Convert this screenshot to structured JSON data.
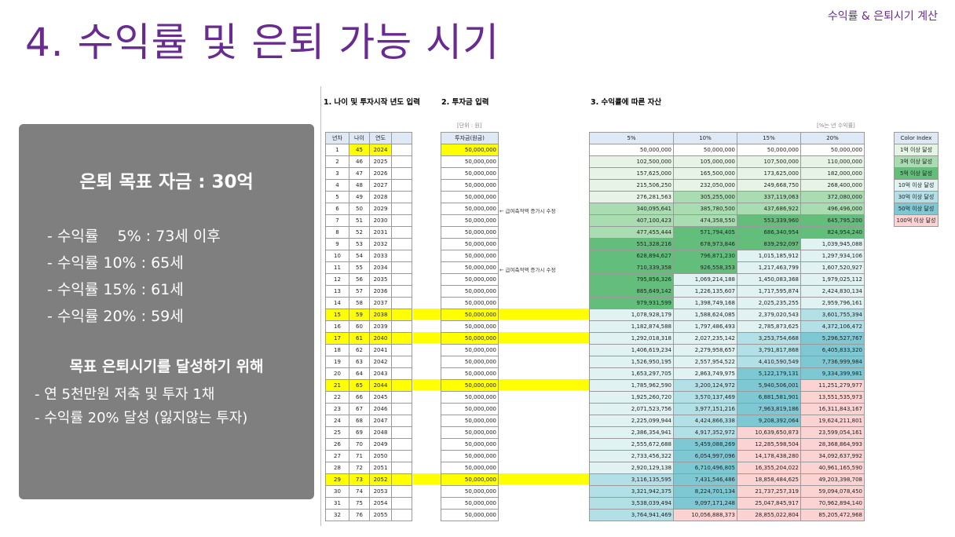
{
  "header": {
    "title": "4. 수익률 및 은퇴 가능 시기",
    "tag": "수익률 & 은퇴시기 계산"
  },
  "summary": {
    "goal": "은퇴 목표 자금 : 30억",
    "rates": [
      "- 수익률    5% : 73세 이후",
      "- 수익률 10% : 65세",
      "- 수익률 15% : 61세",
      "- 수익률 20% : 59세"
    ],
    "achieve_title": "목표 은퇴시기를 달성하기 위해",
    "achieve": [
      "- 연 5천만원 저축 및 투자 1채",
      "- 수익률 20% 달성 (잃지않는 투자)"
    ]
  },
  "sheet": {
    "section1": "1. 나이 및 투자시작 년도 입력",
    "section2": "2. 투자금 입력",
    "section3": "3. 수익률에 따른 자산",
    "unit_note": "[단위 : 원]",
    "rate_note": "[%는 년 수익률]",
    "year_headers": [
      "년차",
      "나이",
      "연도"
    ],
    "invest_header": "투자금(원금)",
    "asset_headers": [
      "5%",
      "10%",
      "15%",
      "20%"
    ],
    "salary_note": "← 급여축적액 증가시 수정",
    "color_index": {
      "title": "Color Index",
      "items": [
        {
          "label": "1억 이상 달성",
          "color": "#e6f4e6"
        },
        {
          "label": "3억 이상 달성",
          "color": "#a9dcb0"
        },
        {
          "label": "5억 이상 달성",
          "color": "#63be7b"
        },
        {
          "label": "10억 이상 달성",
          "color": "#e0f2f1"
        },
        {
          "label": "30억 이상 달성",
          "color": "#b3e0e6"
        },
        {
          "label": "50억 이상 달성",
          "color": "#7ec8d4"
        },
        {
          "label": "100억 이상 달성",
          "color": "#fbd3d3"
        }
      ]
    },
    "rows": [
      {
        "n": "1",
        "age": "45",
        "year": "2024",
        "invest": "50,000,000",
        "a": [
          "50,000,000",
          "50,000,000",
          "50,000,000",
          "50,000,000"
        ]
      },
      {
        "n": "2",
        "age": "46",
        "year": "2025",
        "invest": "50,000,000",
        "a": [
          "102,500,000",
          "105,000,000",
          "107,500,000",
          "110,000,000"
        ]
      },
      {
        "n": "3",
        "age": "47",
        "year": "2026",
        "invest": "50,000,000",
        "a": [
          "157,625,000",
          "165,500,000",
          "173,625,000",
          "182,000,000"
        ]
      },
      {
        "n": "4",
        "age": "48",
        "year": "2027",
        "invest": "50,000,000",
        "a": [
          "215,506,250",
          "232,050,000",
          "249,668,750",
          "268,400,000"
        ]
      },
      {
        "n": "5",
        "age": "49",
        "year": "2028",
        "invest": "50,000,000",
        "a": [
          "276,281,563",
          "305,255,000",
          "337,119,063",
          "372,080,000"
        ]
      },
      {
        "n": "6",
        "age": "50",
        "year": "2029",
        "invest": "50,000,000",
        "a": [
          "340,095,641",
          "385,780,500",
          "437,686,922",
          "496,496,000"
        ]
      },
      {
        "n": "7",
        "age": "51",
        "year": "2030",
        "invest": "50,000,000",
        "a": [
          "407,100,423",
          "474,358,550",
          "553,339,960",
          "645,795,200"
        ]
      },
      {
        "n": "8",
        "age": "52",
        "year": "2031",
        "invest": "50,000,000",
        "a": [
          "477,455,444",
          "571,794,405",
          "686,340,954",
          "824,954,240"
        ]
      },
      {
        "n": "9",
        "age": "53",
        "year": "2032",
        "invest": "50,000,000",
        "a": [
          "551,328,216",
          "678,973,846",
          "839,292,097",
          "1,039,945,088"
        ]
      },
      {
        "n": "10",
        "age": "54",
        "year": "2033",
        "invest": "50,000,000",
        "a": [
          "628,894,627",
          "796,871,230",
          "1,015,185,912",
          "1,297,934,106"
        ]
      },
      {
        "n": "11",
        "age": "55",
        "year": "2034",
        "invest": "50,000,000",
        "a": [
          "710,339,358",
          "926,558,353",
          "1,217,463,799",
          "1,607,520,927"
        ]
      },
      {
        "n": "12",
        "age": "56",
        "year": "2035",
        "invest": "50,000,000",
        "a": [
          "795,856,326",
          "1,069,214,188",
          "1,450,083,368",
          "1,979,025,112"
        ]
      },
      {
        "n": "13",
        "age": "57",
        "year": "2036",
        "invest": "50,000,000",
        "a": [
          "885,649,142",
          "1,226,135,607",
          "1,717,595,874",
          "2,424,830,134"
        ]
      },
      {
        "n": "14",
        "age": "58",
        "year": "2037",
        "invest": "50,000,000",
        "a": [
          "979,931,599",
          "1,398,749,168",
          "2,025,235,255",
          "2,959,796,161"
        ]
      },
      {
        "n": "15",
        "age": "59",
        "year": "2038",
        "invest": "50,000,000",
        "a": [
          "1,078,928,179",
          "1,588,624,085",
          "2,379,020,543",
          "3,601,755,394"
        ]
      },
      {
        "n": "16",
        "age": "60",
        "year": "2039",
        "invest": "50,000,000",
        "a": [
          "1,182,874,588",
          "1,797,486,493",
          "2,785,873,625",
          "4,372,106,472"
        ]
      },
      {
        "n": "17",
        "age": "61",
        "year": "2040",
        "invest": "50,000,000",
        "a": [
          "1,292,018,318",
          "2,027,235,142",
          "3,253,754,668",
          "5,296,527,767"
        ]
      },
      {
        "n": "18",
        "age": "62",
        "year": "2041",
        "invest": "50,000,000",
        "a": [
          "1,406,619,234",
          "2,279,958,657",
          "3,791,817,868",
          "6,405,833,320"
        ]
      },
      {
        "n": "19",
        "age": "63",
        "year": "2042",
        "invest": "50,000,000",
        "a": [
          "1,526,950,195",
          "2,557,954,522",
          "4,410,590,549",
          "7,736,999,984"
        ]
      },
      {
        "n": "20",
        "age": "64",
        "year": "2043",
        "invest": "50,000,000",
        "a": [
          "1,653,297,705",
          "2,863,749,975",
          "5,122,179,131",
          "9,334,399,981"
        ]
      },
      {
        "n": "21",
        "age": "65",
        "year": "2044",
        "invest": "50,000,000",
        "a": [
          "1,785,962,590",
          "3,200,124,972",
          "5,940,506,001",
          "11,251,279,977"
        ]
      },
      {
        "n": "22",
        "age": "66",
        "year": "2045",
        "invest": "50,000,000",
        "a": [
          "1,925,260,720",
          "3,570,137,469",
          "6,881,581,901",
          "13,551,535,973"
        ]
      },
      {
        "n": "23",
        "age": "67",
        "year": "2046",
        "invest": "50,000,000",
        "a": [
          "2,071,523,756",
          "3,977,151,216",
          "7,963,819,186",
          "16,311,843,167"
        ]
      },
      {
        "n": "24",
        "age": "68",
        "year": "2047",
        "invest": "50,000,000",
        "a": [
          "2,225,099,944",
          "4,424,866,338",
          "9,208,392,064",
          "19,624,211,801"
        ]
      },
      {
        "n": "25",
        "age": "69",
        "year": "2048",
        "invest": "50,000,000",
        "a": [
          "2,386,354,941",
          "4,917,352,972",
          "10,639,650,873",
          "23,599,054,161"
        ]
      },
      {
        "n": "26",
        "age": "70",
        "year": "2049",
        "invest": "50,000,000",
        "a": [
          "2,555,672,688",
          "5,459,088,269",
          "12,285,598,504",
          "28,368,864,993"
        ]
      },
      {
        "n": "27",
        "age": "71",
        "year": "2050",
        "invest": "50,000,000",
        "a": [
          "2,733,456,322",
          "6,054,997,096",
          "14,178,438,280",
          "34,092,637,992"
        ]
      },
      {
        "n": "28",
        "age": "72",
        "year": "2051",
        "invest": "50,000,000",
        "a": [
          "2,920,129,138",
          "6,710,496,805",
          "16,355,204,022",
          "40,961,165,590"
        ]
      },
      {
        "n": "29",
        "age": "73",
        "year": "2052",
        "invest": "50,000,000",
        "a": [
          "3,116,135,595",
          "7,431,546,486",
          "18,858,484,625",
          "49,203,398,708"
        ]
      },
      {
        "n": "30",
        "age": "74",
        "year": "2053",
        "invest": "50,000,000",
        "a": [
          "3,321,942,375",
          "8,224,701,134",
          "21,737,257,319",
          "59,094,078,450"
        ]
      },
      {
        "n": "31",
        "age": "75",
        "year": "2054",
        "invest": "50,000,000",
        "a": [
          "3,538,039,494",
          "9,097,171,248",
          "25,047,845,917",
          "70,962,894,140"
        ]
      },
      {
        "n": "32",
        "age": "76",
        "year": "2055",
        "invest": "50,000,000",
        "a": [
          "3,764,941,469",
          "10,056,888,373",
          "28,855,022,804",
          "85,205,472,968"
        ]
      }
    ],
    "highlight_rows": [
      15,
      17,
      21,
      29
    ]
  }
}
